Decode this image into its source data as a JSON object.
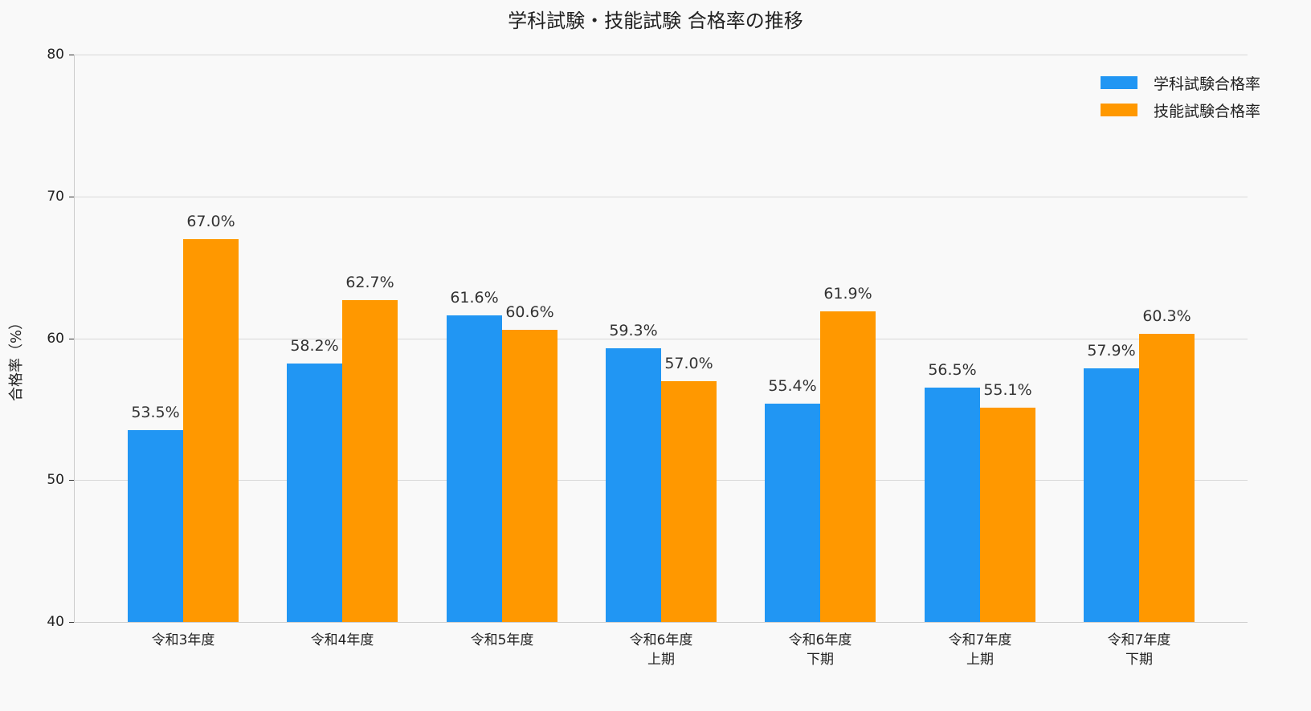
{
  "chart_data": {
    "type": "bar",
    "title": "学科試験・技能試験 合格率の推移",
    "xlabel": "",
    "ylabel": "合格率（%）",
    "ylim": [
      40,
      80
    ],
    "yticks": [
      40,
      50,
      60,
      70,
      80
    ],
    "grid": true,
    "legend_position": "upper right",
    "categories": [
      "令和3年度",
      "令和4年度",
      "令和5年度",
      "令和6年度\n上期",
      "令和6年度\n下期",
      "令和7年度\n上期",
      "令和7年度\n下期"
    ],
    "series": [
      {
        "name": "学科試験合格率",
        "color": "#2196f3",
        "values": [
          53.5,
          58.2,
          61.6,
          59.3,
          55.4,
          56.5,
          57.9
        ]
      },
      {
        "name": "技能試験合格率",
        "color": "#ff9800",
        "values": [
          67.0,
          62.7,
          60.6,
          57.0,
          61.9,
          55.1,
          60.3
        ]
      }
    ]
  },
  "title": "学科試験・技能試験 合格率の推移",
  "yaxis": {
    "title": "合格率（%）",
    "ticks": [
      "80",
      "70",
      "60",
      "50",
      "40"
    ]
  },
  "legend": {
    "items": [
      "学科試験合格率",
      "技能試験合格率"
    ]
  },
  "xaxis": {
    "labels": [
      {
        "line1": "令和3年度",
        "line2": ""
      },
      {
        "line1": "令和4年度",
        "line2": ""
      },
      {
        "line1": "令和5年度",
        "line2": ""
      },
      {
        "line1": "令和6年度",
        "line2": "上期"
      },
      {
        "line1": "令和6年度",
        "line2": "下期"
      },
      {
        "line1": "令和7年度",
        "line2": "上期"
      },
      {
        "line1": "令和7年度",
        "line2": "下期"
      }
    ]
  },
  "labels": {
    "blue": [
      "53.5%",
      "58.2%",
      "61.6%",
      "59.3%",
      "55.4%",
      "56.5%",
      "57.9%"
    ],
    "orange": [
      "67.0%",
      "62.7%",
      "60.6%",
      "57.0%",
      "61.9%",
      "55.1%",
      "60.3%"
    ]
  }
}
